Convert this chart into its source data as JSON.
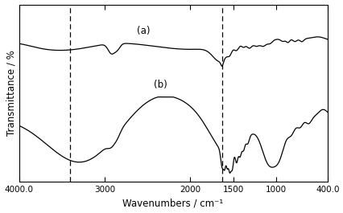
{
  "xlabel": "Wavenumbers / cm⁻¹",
  "ylabel": "Transmittance / %",
  "xmin": 4000,
  "xmax": 400,
  "label_a": "(a)",
  "label_b": "(b)",
  "dashed_lines": [
    3400,
    1630
  ],
  "background_color": "#ffffff",
  "line_color": "#000000",
  "xticks": [
    4000,
    3000,
    2000,
    1500,
    1000,
    400
  ],
  "xtick_labels": [
    "4000.0",
    "3000",
    "2000",
    "1500",
    "1000",
    "400.0"
  ]
}
